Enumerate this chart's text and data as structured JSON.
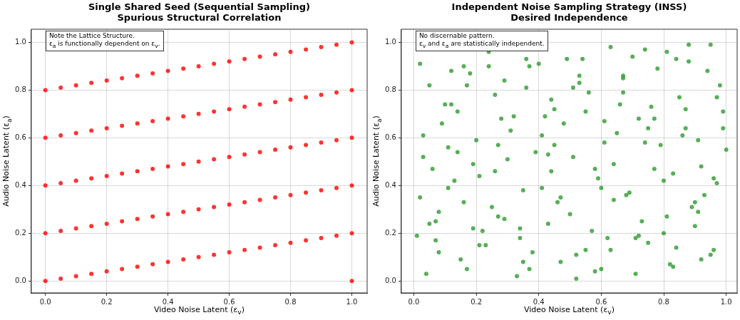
{
  "chart_data": [
    {
      "type": "scatter",
      "title": "Single Shared Seed (Sequential Sampling)",
      "subtitle": "Spurious Structural Correlation",
      "xlabel": "Video Noise Latent (ε$_{v}$)",
      "ylabel": "Audio Noise Latent (ε$_{a}$)",
      "annotations": [
        "Note the Lattice Structure.",
        "ε$_{a}$ is functionally dependent on ε$_{v}$."
      ],
      "xlim": [
        -0.046,
        1.05
      ],
      "ylim": [
        -0.05,
        1.055
      ],
      "xticks": [
        {
          "value": 0,
          "label": "0.0"
        },
        {
          "value": 0.2,
          "label": "0.2"
        },
        {
          "value": 0.4,
          "label": "0.4"
        },
        {
          "value": 0.6,
          "label": "0.6"
        },
        {
          "value": 0.8,
          "label": "0.8"
        },
        {
          "value": 1,
          "label": "1.0"
        }
      ],
      "yticks": [
        {
          "value": 0,
          "label": "0.0"
        },
        {
          "value": 0.2,
          "label": "0.2"
        },
        {
          "value": 0.4,
          "label": "0.4"
        },
        {
          "value": 0.6,
          "label": "0.6"
        },
        {
          "value": 0.8,
          "label": "0.8"
        },
        {
          "value": 1,
          "label": "1.0"
        }
      ],
      "grid": true,
      "legend": false,
      "marker": "circle",
      "series": [
        {
          "color": "#ff0000",
          "x": [
            0,
            0.05,
            0.1,
            0.15,
            0.2,
            0.25,
            0.3,
            0.35,
            0.4,
            0.45,
            0.5,
            0.55,
            0.6,
            0.65,
            0.7,
            0.75,
            0.8,
            0.85,
            0.9,
            0.95,
            1,
            0,
            0.05,
            0.1,
            0.15,
            0.2,
            0.25,
            0.3,
            0.35,
            0.4,
            0.45,
            0.5,
            0.55,
            0.6,
            0.65,
            0.7,
            0.75,
            0.8,
            0.85,
            0.9,
            0.95,
            1,
            0,
            0.05,
            0.1,
            0.15,
            0.2,
            0.25,
            0.3,
            0.35,
            0.4,
            0.45,
            0.5,
            0.55,
            0.6,
            0.65,
            0.7,
            0.75,
            0.8,
            0.85,
            0.9,
            0.95,
            1,
            0,
            0.05,
            0.1,
            0.15,
            0.2,
            0.25,
            0.3,
            0.35,
            0.4,
            0.45,
            0.5,
            0.55,
            0.6,
            0.65,
            0.7,
            0.75,
            0.8,
            0.85,
            0.9,
            0.95,
            1,
            0,
            0.05,
            0.1,
            0.15,
            0.2,
            0.25,
            0.3,
            0.35,
            0.4,
            0.45,
            0.5,
            0.55,
            0.6,
            0.65,
            0.7,
            0.75,
            0.8,
            0.85,
            0.9,
            0.95,
            1,
            1
          ],
          "values": [
            0,
            0.01,
            0.02,
            0.03,
            0.04,
            0.05,
            0.06,
            0.07,
            0.08,
            0.09,
            0.1,
            0.11,
            0.12,
            0.13,
            0.14,
            0.15,
            0.16,
            0.17,
            0.18,
            0.19,
            0.2,
            0.2,
            0.21,
            0.22,
            0.23,
            0.24,
            0.25,
            0.26,
            0.27,
            0.28,
            0.29,
            0.3,
            0.31,
            0.32,
            0.33,
            0.34,
            0.35,
            0.36,
            0.37,
            0.38,
            0.39,
            0.4,
            0.4,
            0.41,
            0.42,
            0.43,
            0.44,
            0.45,
            0.46,
            0.47,
            0.48,
            0.49,
            0.5,
            0.51,
            0.52,
            0.53,
            0.54,
            0.55,
            0.56,
            0.57,
            0.58,
            0.59,
            0.6,
            0.6,
            0.61,
            0.62,
            0.63,
            0.64,
            0.65,
            0.66,
            0.67,
            0.68,
            0.69,
            0.7,
            0.71,
            0.72,
            0.73,
            0.74,
            0.75,
            0.76,
            0.77,
            0.78,
            0.79,
            0.8,
            0.8,
            0.81,
            0.82,
            0.83,
            0.84,
            0.85,
            0.86,
            0.87,
            0.88,
            0.89,
            0.9,
            0.91,
            0.92,
            0.93,
            0.94,
            0.95,
            0.96,
            0.97,
            0.98,
            0.99,
            1,
            0
          ]
        }
      ]
    },
    {
      "type": "scatter",
      "title": "Independent Noise Sampling Strategy (INSS)",
      "subtitle": "Desired Independence",
      "xlabel": "Video Noise Latent (ε$_{v}$)",
      "ylabel": "Audio Noise Latent (ε$_{a}$)",
      "annotations": [
        "No discernable pattern.",
        "ε$_{v}$ and ε$_{a}$ are statistically independent."
      ],
      "xlim": [
        -0.04,
        1.035
      ],
      "ylim": [
        -0.05,
        1.055
      ],
      "xticks": [
        {
          "value": 0,
          "label": "0.0"
        },
        {
          "value": 0.2,
          "label": "0.2"
        },
        {
          "value": 0.4,
          "label": "0.4"
        },
        {
          "value": 0.6,
          "label": "0.6"
        },
        {
          "value": 0.8,
          "label": "0.8"
        },
        {
          "value": 1,
          "label": "1.0"
        }
      ],
      "yticks": [
        {
          "value": 0,
          "label": "0.0"
        },
        {
          "value": 0.2,
          "label": "0.2"
        },
        {
          "value": 0.4,
          "label": "0.4"
        },
        {
          "value": 0.6,
          "label": "0.6"
        },
        {
          "value": 0.8,
          "label": "0.8"
        },
        {
          "value": 1,
          "label": "1.0"
        }
      ],
      "grid": true,
      "legend": false,
      "marker": "circle",
      "series": [
        {
          "color": "#2e9a2e",
          "x": [
            0.02,
            0.05,
            0.08,
            0.11,
            0.14,
            0.17,
            0.21,
            0.24,
            0.27,
            0.31,
            0.34,
            0.37,
            0.41,
            0.44,
            0.47,
            0.51,
            0.54,
            0.57,
            0.61,
            0.64,
            0.67,
            0.71,
            0.74,
            0.77,
            0.81,
            0.84,
            0.87,
            0.91,
            0.94,
            0.97,
            0.99,
            0.03,
            0.07,
            0.12,
            0.16,
            0.19,
            0.23,
            0.28,
            0.33,
            0.36,
            0.39,
            0.43,
            0.48,
            0.52,
            0.56,
            0.59,
            0.63,
            0.68,
            0.72,
            0.76,
            0.79,
            0.83,
            0.88,
            0.92,
            0.96,
            0.01,
            0.06,
            0.1,
            0.15,
            0.2,
            0.25,
            0.29,
            0.35,
            0.4,
            0.45,
            0.5,
            0.55,
            0.6,
            0.65,
            0.7,
            0.75,
            0.8,
            0.85,
            0.9,
            0.95,
            1,
            0.04,
            0.09,
            0.13,
            0.18,
            0.22,
            0.26,
            0.3,
            0.38,
            0.42,
            0.46,
            0.53,
            0.58,
            0.62,
            0.66,
            0.73,
            0.78,
            0.82,
            0.86,
            0.93,
            0.98,
            0.02,
            0.08,
            0.14,
            0.19,
            0.24,
            0.32,
            0.37,
            0.44,
            0.49,
            0.55,
            0.61,
            0.69,
            0.74,
            0.81,
            0.87,
            0.92,
            0.97,
            0.05,
            0.11,
            0.17,
            0.27,
            0.34,
            0.41,
            0.47,
            0.53,
            0.58,
            0.64,
            0.71,
            0.77,
            0.84,
            0.89,
            0.95,
            0.03,
            0.12,
            0.21,
            0.29,
            0.36,
            0.45,
            0.52,
            0.6,
            0.67,
            0.75,
            0.83,
            0.9,
            0.99,
            0.07,
            0.16,
            0.26,
            0.35,
            0.43,
            0.51,
            0.63,
            0.72,
            0.8,
            0.88,
            0.96,
            0.91,
            0.67
          ],
          "values": [
            0.35,
            0.82,
            0.12,
            0.56,
            0.71,
            0.05,
            0.44,
            0.9,
            0.27,
            0.63,
            0.18,
            0.9,
            0.39,
            0.76,
            0.08,
            0.52,
            0.93,
            0.21,
            0.67,
            0.34,
            0.85,
            0.03,
            0.58,
            0.47,
            0.96,
            0.14,
            0.72,
            0.29,
            0.88,
            0.41,
            0.64,
            0.61,
            0.25,
            0.88,
            0.33,
            0.49,
            0.15,
            0.68,
            0.02,
            0.81,
            0.54,
            0.24,
            0.66,
            0.11,
            0.79,
            0.43,
            0.98,
            0.36,
            0.19,
            0.73,
            0.57,
            0.06,
            0.92,
            0.48,
            0.13,
            0.19,
            0.47,
            0.74,
            0.09,
            0.59,
            0.31,
            0.84,
            0.38,
            0.91,
            0.57,
            0.28,
            0.71,
            0.05,
            0.62,
            0.94,
            0.16,
            0.42,
            0.77,
            0.23,
            0.99,
            0.55,
            0.03,
            0.66,
            0.42,
            0.87,
            0.21,
            0.78,
            0.51,
            0.12,
            0.69,
            0.33,
            0.86,
            0.47,
            0.18,
            0.74,
            0.25,
            0.89,
            0.07,
            0.61,
            0.36,
            0.82,
            0.91,
            0.29,
            0.54,
            0.22,
            0.96,
            0.69,
            0.05,
            0.46,
            0.93,
            0.13,
            0.58,
            0.37,
            0.97,
            0.27,
            0.64,
            0.09,
            0.77,
            0.24,
            0.39,
            0.82,
            0.57,
            0.22,
            0.61,
            0.35,
            0.83,
            0.04,
            0.49,
            0.18,
            0.68,
            0.93,
            0.31,
            0.11,
            0.52,
            0.74,
            0.15,
            0.26,
            0.93,
            0.72,
            0.01,
            0.39,
            0.79,
            0.64,
            0.45,
            0.33,
            0.71,
            0.17,
            0.9,
            0.46,
            0.08,
            0.53,
            0.81,
            0.13,
            0.68,
            0.2,
            0.99,
            0.43,
            0.59,
            0.86
          ]
        }
      ]
    }
  ]
}
